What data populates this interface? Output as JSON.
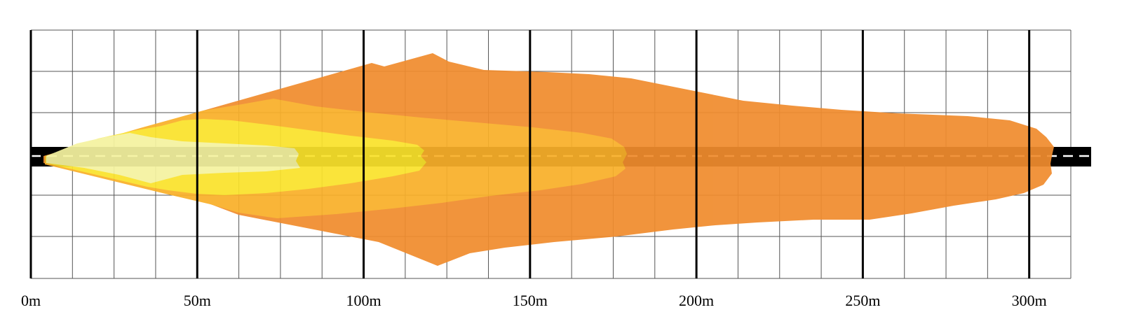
{
  "colors": {
    "background": "#ffffff",
    "grid_minor": "#555555",
    "grid_major": "#000000",
    "road": "#000000",
    "road_center_line": "#ffffff",
    "zone_outer": "#F08C2E",
    "zone_third": "#F9B02A",
    "zone_second": "#FAE22C",
    "zone_inner": "#F5F3A0"
  },
  "distance_axis": {
    "ticks": [
      {
        "value": 0,
        "label": "0m"
      },
      {
        "value": 50,
        "label": "50m"
      },
      {
        "value": 100,
        "label": "100m"
      },
      {
        "value": 150,
        "label": "150m"
      },
      {
        "value": 200,
        "label": "200m"
      },
      {
        "value": 250,
        "label": "250m"
      },
      {
        "value": 300,
        "label": "300m"
      }
    ],
    "range": [
      0,
      312.5
    ],
    "minor_step": 12.5
  },
  "beam_zones": [
    {
      "name": "outer",
      "color_key": "zone_outer",
      "reach_m": 303
    },
    {
      "name": "third",
      "color_key": "zone_third",
      "reach_m": 177
    },
    {
      "name": "second",
      "color_key": "zone_second",
      "reach_m": 116
    },
    {
      "name": "inner",
      "color_key": "zone_inner",
      "reach_m": 79
    }
  ]
}
